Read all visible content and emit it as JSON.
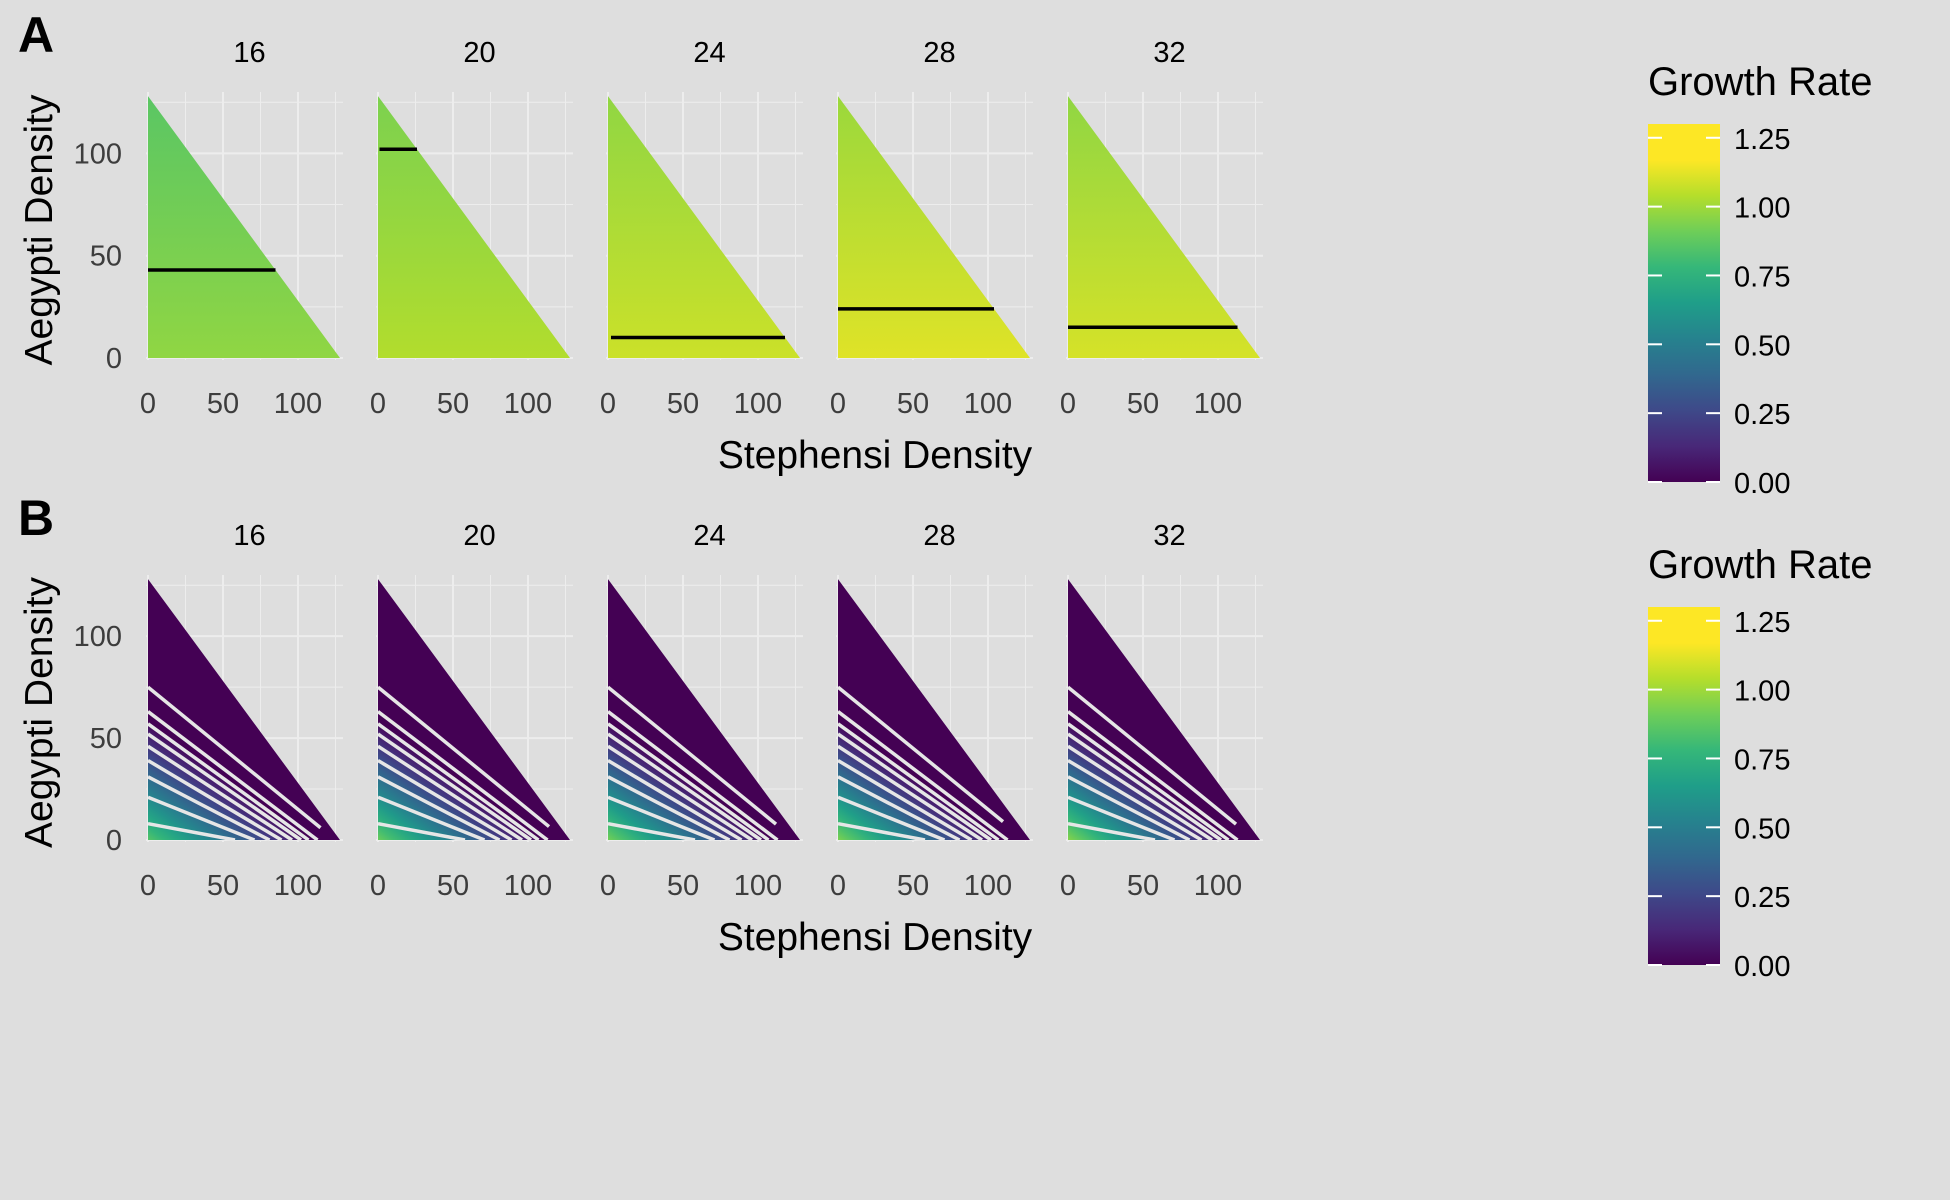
{
  "colors": {
    "background": "#dedede",
    "gridline": "#ededed",
    "text": "#000000",
    "tick_text": "#3d3d3d",
    "panel_a_line": "#000000",
    "panel_b_line": "#e6e6e6",
    "viridis": [
      "#440154",
      "#482878",
      "#3e4989",
      "#31688e",
      "#26828e",
      "#1f9e89",
      "#35b779",
      "#6ece58",
      "#b5de2b",
      "#fde725"
    ]
  },
  "chart_data": [
    {
      "type": "heatmap",
      "panel_label": "A",
      "title": "",
      "xlabel": "Stephensi Density",
      "ylabel": "Aegypti Density",
      "facets": [
        "16",
        "20",
        "24",
        "28",
        "32"
      ],
      "xlim": [
        0,
        130
      ],
      "ylim": [
        0,
        130
      ],
      "x_ticks": [
        0,
        50,
        100
      ],
      "y_ticks": [
        0,
        50,
        100
      ],
      "grid": true,
      "legend_position": "right",
      "legend": {
        "title": "Growth Rate",
        "ticks": [
          "0.00",
          "0.25",
          "0.50",
          "0.75",
          "1.00",
          "1.25"
        ],
        "range": [
          0,
          1.3
        ]
      },
      "domain": "x + y <= 128 (triangle)",
      "surfaces": [
        {
          "facet": "16",
          "growth_at_y0": 1.08,
          "growth_at_ytop": 0.96,
          "x_effect": 0.0
        },
        {
          "facet": "20",
          "growth_at_y0": 1.15,
          "growth_at_ytop": 1.04,
          "x_effect": 0.0
        },
        {
          "facet": "24",
          "growth_at_y0": 1.2,
          "growth_at_ytop": 1.08,
          "x_effect": 0.0
        },
        {
          "facet": "28",
          "growth_at_y0": 1.24,
          "growth_at_ytop": 1.1,
          "x_effect": 0.0
        },
        {
          "facet": "32",
          "growth_at_y0": 1.22,
          "growth_at_ytop": 1.08,
          "x_effect": 0.0
        }
      ],
      "contour_lines": [
        {
          "facet": "16",
          "y": 43,
          "x_start": 0,
          "x_end": 85
        },
        {
          "facet": "20",
          "y": 102,
          "x_start": 1,
          "x_end": 26
        },
        {
          "facet": "24",
          "y": 10,
          "x_start": 2,
          "x_end": 118
        },
        {
          "facet": "28",
          "y": 24,
          "x_start": 0,
          "x_end": 104
        },
        {
          "facet": "32",
          "y": 15,
          "x_start": 0,
          "x_end": 113
        }
      ]
    },
    {
      "type": "heatmap",
      "panel_label": "B",
      "title": "",
      "xlabel": "Stephensi Density",
      "ylabel": "Aegypti Density",
      "facets": [
        "16",
        "20",
        "24",
        "28",
        "32"
      ],
      "xlim": [
        0,
        130
      ],
      "ylim": [
        0,
        130
      ],
      "x_ticks": [
        0,
        50,
        100
      ],
      "y_ticks": [
        0,
        50,
        100
      ],
      "grid": true,
      "legend_position": "right",
      "legend": {
        "title": "Growth Rate",
        "ticks": [
          "0.00",
          "0.25",
          "0.50",
          "0.75",
          "1.00",
          "1.25"
        ],
        "range": [
          0,
          1.3
        ]
      },
      "domain": "x + y <= 128 (triangle)",
      "surfaces": [
        {
          "facet": "16",
          "growth_at_origin": 0.95,
          "zero_at_sum": 76
        },
        {
          "facet": "20",
          "growth_at_origin": 1.0,
          "zero_at_sum": 76
        },
        {
          "facet": "24",
          "growth_at_origin": 1.02,
          "zero_at_sum": 76
        },
        {
          "facet": "28",
          "growth_at_origin": 1.04,
          "zero_at_sum": 76
        },
        {
          "facet": "32",
          "growth_at_origin": 1.06,
          "zero_at_sum": 76
        }
      ],
      "contour_line_intercepts": [
        8,
        21,
        31,
        39,
        46,
        52,
        57,
        63,
        75
      ],
      "top_contour_end_x": [
        115,
        114,
        112,
        110,
        112
      ]
    }
  ]
}
